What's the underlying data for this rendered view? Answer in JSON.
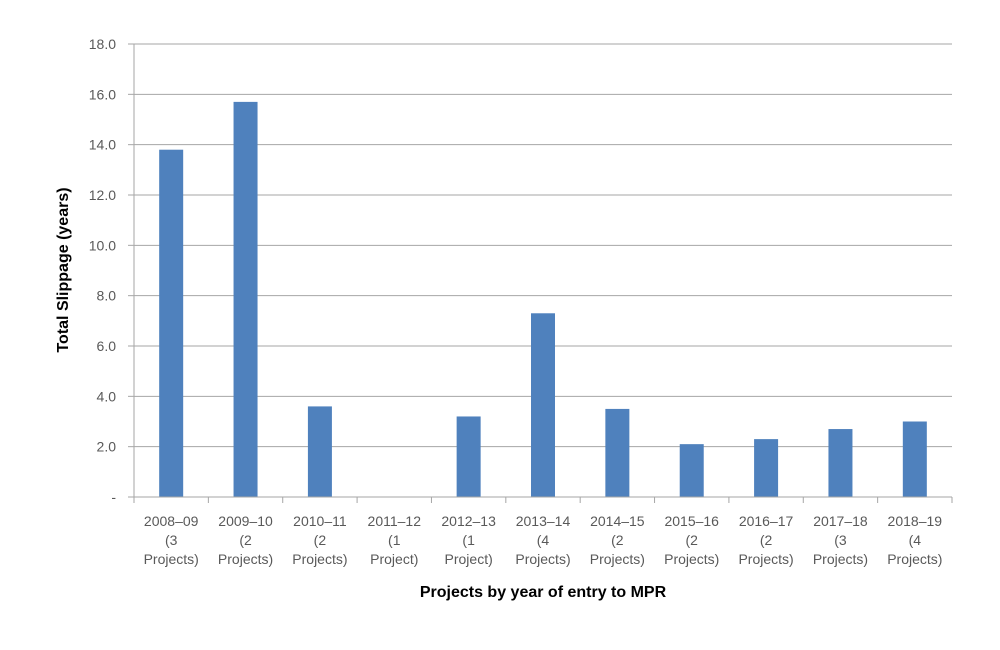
{
  "chart_data": {
    "type": "bar",
    "title": "",
    "xlabel": "Projects by year of entry to MPR",
    "ylabel": "Total Slippage (years)",
    "ylim": [
      0,
      18
    ],
    "yticks": [
      "-",
      "2.0",
      "4.0",
      "6.0",
      "8.0",
      "10.0",
      "12.0",
      "14.0",
      "16.0",
      "18.0"
    ],
    "categories": [
      [
        "2008–09",
        "(3",
        "Projects)"
      ],
      [
        "2009–10",
        "(2",
        "Projects)"
      ],
      [
        "2010–11",
        "(2",
        "Projects)"
      ],
      [
        "2011–12",
        "(1",
        "Project)"
      ],
      [
        "2012–13",
        "(1",
        "Project)"
      ],
      [
        "2013–14",
        "(4",
        "Projects)"
      ],
      [
        "2014–15",
        "(2",
        "Projects)"
      ],
      [
        "2015–16",
        "(2",
        "Projects)"
      ],
      [
        "2016–17",
        "(2",
        "Projects)"
      ],
      [
        "2017–18",
        "(3",
        "Projects)"
      ],
      [
        "2018–19",
        "(4",
        "Projects)"
      ]
    ],
    "values": [
      13.8,
      15.7,
      3.6,
      0,
      3.2,
      7.3,
      3.5,
      2.1,
      2.3,
      2.7,
      3.0
    ],
    "grid": true,
    "legend": "none",
    "colors": {
      "bar": "#4f81bd",
      "grid": "#a6a6a6",
      "axis": "#a6a6a6"
    }
  }
}
